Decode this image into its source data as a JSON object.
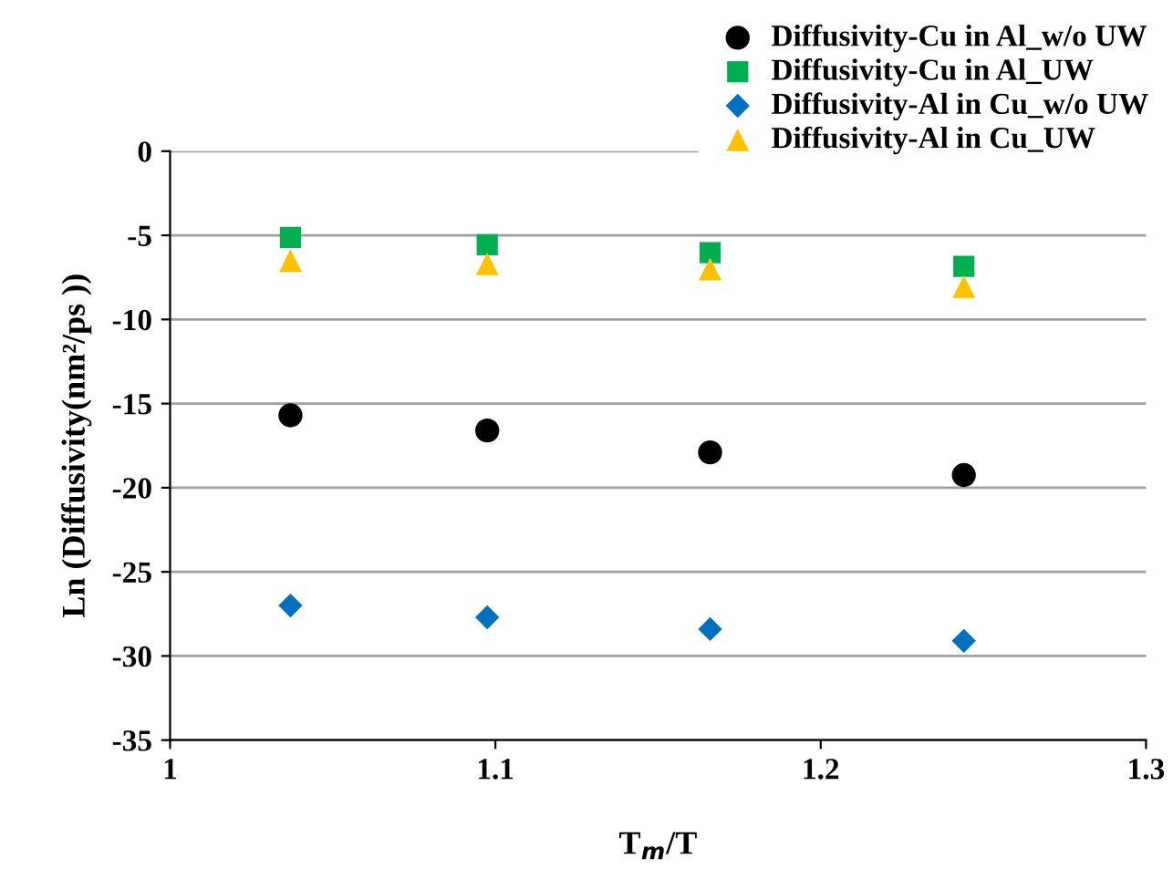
{
  "chart_data": {
    "type": "scatter",
    "xlabel": "T$_{m}$/T",
    "ylabel": "Ln (Diffusivity(nm²/ps ))",
    "x": [
      1.037,
      1.0975,
      1.166,
      1.244
    ],
    "series": [
      {
        "name": "Diffusivity-Cu in Al_w/o UW",
        "color": "#000000",
        "marker": "circle",
        "values": [
          -15.7,
          -16.6,
          -17.9,
          -19.25
        ]
      },
      {
        "name": "Diffusivity-Cu in Al_UW",
        "color": "#00b050",
        "marker": "square",
        "values": [
          -5.13,
          -5.56,
          -6.03,
          -6.85
        ]
      },
      {
        "name": "Diffusivity-Al in Cu_w/o UW",
        "color": "#0070c0",
        "marker": "diamond",
        "values": [
          -27.0,
          -27.7,
          -28.4,
          -29.1
        ]
      },
      {
        "name": "Diffusivity-Al in Cu_UW",
        "color": "#ffc000",
        "marker": "triangle",
        "values": [
          -6.5,
          -6.7,
          -7.0,
          -8.05
        ]
      }
    ],
    "xlim": [
      1,
      1.3
    ],
    "xticks": [
      1,
      1.1,
      1.2,
      1.3
    ],
    "ylim": [
      -35,
      0
    ],
    "yticks": [
      -35,
      -30,
      -25,
      -20,
      -15,
      -10,
      -5,
      0
    ],
    "grid": "y",
    "legend": "top right"
  }
}
